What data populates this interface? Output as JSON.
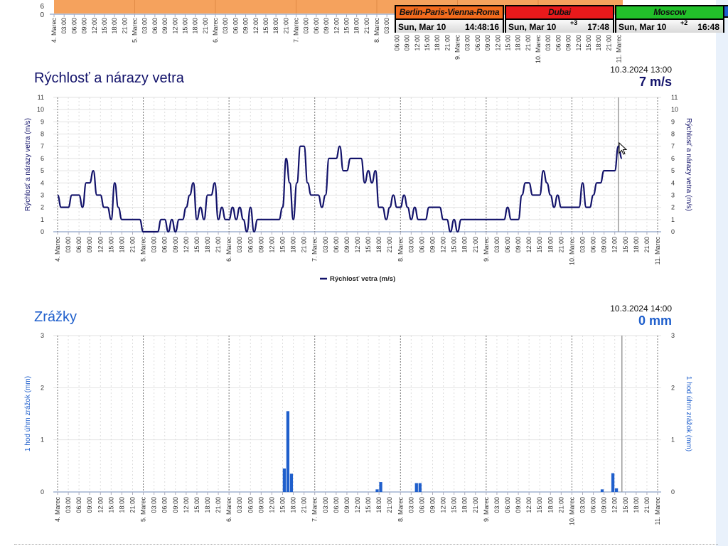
{
  "x_ticks": {
    "days": [
      "4. Marec",
      "5. Marec",
      "6. Marec",
      "7. Marec",
      "8. Marec",
      "9. Marec",
      "10. Marec",
      "11. Marec"
    ],
    "hours": [
      "03:00",
      "06:00",
      "09:00",
      "12:00",
      "15:00",
      "18:00",
      "21:00"
    ]
  },
  "top_chart": {
    "y_ticks": [
      "6",
      "0"
    ],
    "fill_color": "#f5a25d"
  },
  "clocks": [
    {
      "city": "Berlin-Paris-Vienna-Roma",
      "date": "Sun, Mar 10",
      "offset": "",
      "time": "14:48:16",
      "color": "#f26b1d"
    },
    {
      "city": "Dubai",
      "date": "Sun, Mar 10",
      "offset": "+3",
      "time": "17:48",
      "color": "#e8191b"
    },
    {
      "city": "Moscow",
      "date": "Sun, Mar 10",
      "offset": "+2",
      "time": "16:48",
      "color": "#22c02a"
    }
  ],
  "wind": {
    "title": "Rýchlosť a nárazy vetra",
    "readout_time": "10.3.2024 13:00",
    "readout_value": "7 m/s",
    "color": "#12126a"
  },
  "precip": {
    "title": "Zrážky",
    "readout_time": "10.3.2024 14:00",
    "readout_value": "0 mm",
    "color": "#1f5fcc"
  },
  "chart_data": [
    {
      "type": "line",
      "ylabel": "Rýchlosť a nárazy vetra (m/s)",
      "ylim": [
        0,
        11
      ],
      "xlim": [
        "2024-03-04 00:00",
        "2024-03-11 00:00"
      ],
      "cursor": "2024-03-10 13:00",
      "legend": "top-center-below",
      "grid": true,
      "series": [
        {
          "name": "Rýchlosť vetra (m/s)",
          "points": [
            [
              "2024-03-04 00:00",
              3
            ],
            [
              "2024-03-04 01:00",
              2
            ],
            [
              "2024-03-04 03:00",
              2
            ],
            [
              "2024-03-04 04:00",
              3
            ],
            [
              "2024-03-04 06:00",
              3
            ],
            [
              "2024-03-04 07:00",
              2
            ],
            [
              "2024-03-04 08:00",
              4
            ],
            [
              "2024-03-04 09:00",
              4
            ],
            [
              "2024-03-04 10:00",
              5
            ],
            [
              "2024-03-04 11:00",
              3
            ],
            [
              "2024-03-04 12:00",
              3
            ],
            [
              "2024-03-04 13:00",
              2
            ],
            [
              "2024-03-04 14:00",
              2
            ],
            [
              "2024-03-04 15:00",
              1
            ],
            [
              "2024-03-04 16:00",
              4
            ],
            [
              "2024-03-04 17:00",
              2
            ],
            [
              "2024-03-04 18:00",
              1
            ],
            [
              "2024-03-04 23:00",
              1
            ],
            [
              "2024-03-05 00:00",
              0
            ],
            [
              "2024-03-05 04:00",
              0
            ],
            [
              "2024-03-05 05:00",
              1
            ],
            [
              "2024-03-05 06:00",
              1
            ],
            [
              "2024-03-05 07:00",
              0
            ],
            [
              "2024-03-05 08:00",
              1
            ],
            [
              "2024-03-05 09:00",
              0
            ],
            [
              "2024-03-05 10:00",
              1
            ],
            [
              "2024-03-05 11:00",
              1
            ],
            [
              "2024-03-05 12:00",
              2
            ],
            [
              "2024-03-05 13:00",
              3
            ],
            [
              "2024-03-05 14:00",
              4
            ],
            [
              "2024-03-05 15:00",
              1
            ],
            [
              "2024-03-05 16:00",
              2
            ],
            [
              "2024-03-05 17:00",
              1
            ],
            [
              "2024-03-05 18:00",
              3
            ],
            [
              "2024-03-05 19:00",
              3
            ],
            [
              "2024-03-05 20:00",
              4
            ],
            [
              "2024-03-05 21:00",
              1
            ],
            [
              "2024-03-05 22:00",
              2
            ],
            [
              "2024-03-05 23:00",
              1
            ],
            [
              "2024-03-06 00:00",
              1
            ],
            [
              "2024-03-06 01:00",
              2
            ],
            [
              "2024-03-06 02:00",
              1
            ],
            [
              "2024-03-06 03:00",
              2
            ],
            [
              "2024-03-06 04:00",
              1
            ],
            [
              "2024-03-06 05:00",
              0
            ],
            [
              "2024-03-06 06:00",
              2
            ],
            [
              "2024-03-06 07:00",
              0
            ],
            [
              "2024-03-06 08:00",
              1
            ],
            [
              "2024-03-06 14:00",
              1
            ],
            [
              "2024-03-06 15:00",
              2
            ],
            [
              "2024-03-06 16:00",
              6
            ],
            [
              "2024-03-06 17:00",
              4
            ],
            [
              "2024-03-06 18:00",
              1
            ],
            [
              "2024-03-06 19:00",
              4
            ],
            [
              "2024-03-06 20:00",
              7
            ],
            [
              "2024-03-06 21:00",
              7
            ],
            [
              "2024-03-06 22:00",
              4
            ],
            [
              "2024-03-06 23:00",
              3
            ],
            [
              "2024-03-07 00:00",
              3
            ],
            [
              "2024-03-07 01:00",
              3
            ],
            [
              "2024-03-07 02:00",
              2
            ],
            [
              "2024-03-07 03:00",
              3
            ],
            [
              "2024-03-07 04:00",
              6
            ],
            [
              "2024-03-07 06:00",
              6
            ],
            [
              "2024-03-07 07:00",
              7
            ],
            [
              "2024-03-07 08:00",
              5
            ],
            [
              "2024-03-07 09:00",
              5
            ],
            [
              "2024-03-07 10:00",
              6
            ],
            [
              "2024-03-07 13:00",
              6
            ],
            [
              "2024-03-07 14:00",
              4
            ],
            [
              "2024-03-07 15:00",
              5
            ],
            [
              "2024-03-07 16:00",
              4
            ],
            [
              "2024-03-07 17:00",
              5
            ],
            [
              "2024-03-07 18:00",
              2
            ],
            [
              "2024-03-07 19:00",
              2
            ],
            [
              "2024-03-07 20:00",
              1
            ],
            [
              "2024-03-07 21:00",
              2
            ],
            [
              "2024-03-07 22:00",
              3
            ],
            [
              "2024-03-07 23:00",
              2
            ],
            [
              "2024-03-08 00:00",
              2
            ],
            [
              "2024-03-08 01:00",
              3
            ],
            [
              "2024-03-08 02:00",
              2
            ],
            [
              "2024-03-08 03:00",
              1
            ],
            [
              "2024-03-08 04:00",
              2
            ],
            [
              "2024-03-08 05:00",
              1
            ],
            [
              "2024-03-08 07:00",
              1
            ],
            [
              "2024-03-08 08:00",
              2
            ],
            [
              "2024-03-08 11:00",
              2
            ],
            [
              "2024-03-08 12:00",
              1
            ],
            [
              "2024-03-08 13:00",
              1
            ],
            [
              "2024-03-08 14:00",
              0
            ],
            [
              "2024-03-08 15:00",
              1
            ],
            [
              "2024-03-08 16:00",
              0
            ],
            [
              "2024-03-08 17:00",
              1
            ],
            [
              "2024-03-09 05:00",
              1
            ],
            [
              "2024-03-09 06:00",
              2
            ],
            [
              "2024-03-09 07:00",
              1
            ],
            [
              "2024-03-09 09:00",
              1
            ],
            [
              "2024-03-09 10:00",
              3
            ],
            [
              "2024-03-09 11:00",
              4
            ],
            [
              "2024-03-09 12:00",
              4
            ],
            [
              "2024-03-09 13:00",
              3
            ],
            [
              "2024-03-09 15:00",
              3
            ],
            [
              "2024-03-09 16:00",
              5
            ],
            [
              "2024-03-09 17:00",
              4
            ],
            [
              "2024-03-09 18:00",
              3
            ],
            [
              "2024-03-09 19:00",
              2
            ],
            [
              "2024-03-09 20:00",
              3
            ],
            [
              "2024-03-09 21:00",
              2
            ],
            [
              "2024-03-10 00:00",
              2
            ],
            [
              "2024-03-10 02:00",
              2
            ],
            [
              "2024-03-10 03:00",
              4
            ],
            [
              "2024-03-10 04:00",
              2
            ],
            [
              "2024-03-10 05:00",
              2
            ],
            [
              "2024-03-10 06:00",
              3
            ],
            [
              "2024-03-10 07:00",
              4
            ],
            [
              "2024-03-10 08:00",
              4
            ],
            [
              "2024-03-10 09:00",
              5
            ],
            [
              "2024-03-10 12:00",
              5
            ],
            [
              "2024-03-10 13:00",
              7
            ],
            [
              "2024-03-10 14:00",
              6
            ]
          ]
        }
      ]
    },
    {
      "type": "bar",
      "ylabel": "1 hod úhrn zrážok (mm)",
      "ylim": [
        0,
        3
      ],
      "xlim": [
        "2024-03-04 00:00",
        "2024-03-11 00:00"
      ],
      "cursor": "2024-03-10 14:00",
      "grid": true,
      "bars": [
        [
          "2024-03-06 15:00",
          0.45
        ],
        [
          "2024-03-06 16:00",
          1.55
        ],
        [
          "2024-03-06 17:00",
          0.35
        ],
        [
          "2024-03-07 17:00",
          0.05
        ],
        [
          "2024-03-07 18:00",
          0.19
        ],
        [
          "2024-03-08 04:00",
          0.17
        ],
        [
          "2024-03-08 05:00",
          0.17
        ],
        [
          "2024-03-10 08:00",
          0.05
        ],
        [
          "2024-03-10 11:00",
          0.36
        ],
        [
          "2024-03-10 12:00",
          0.07
        ]
      ]
    }
  ]
}
